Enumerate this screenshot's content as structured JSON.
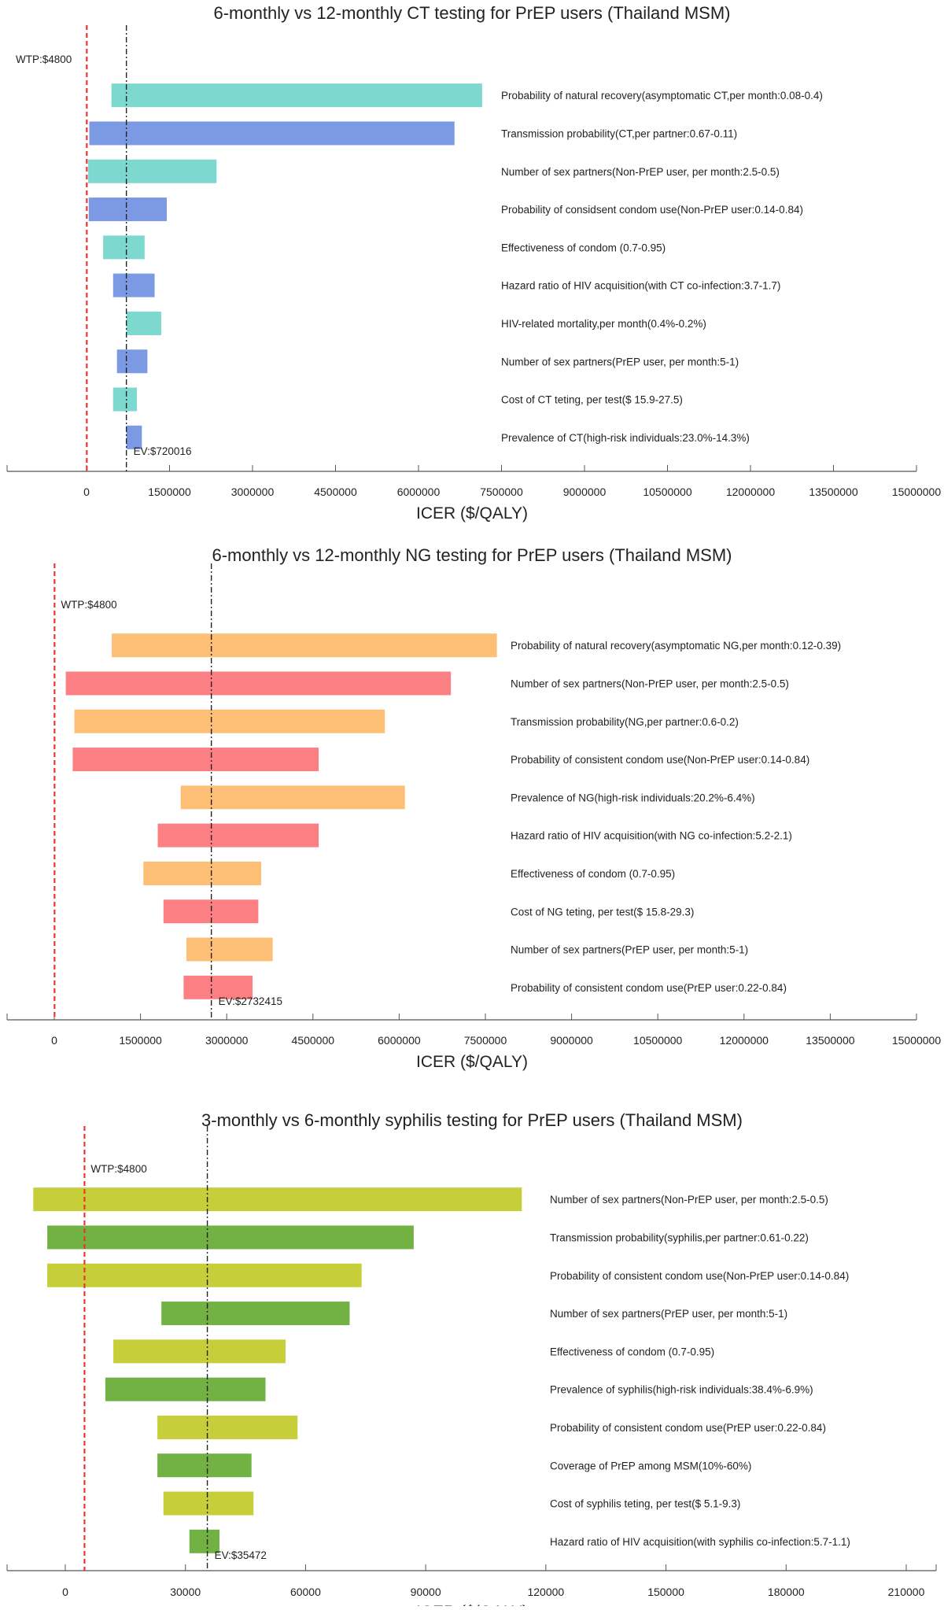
{
  "chart_data": [
    {
      "type": "tornado",
      "title": "6-monthly vs 12-monthly CT testing for PrEP users (Thailand MSM)",
      "xlabel": "ICER ($/QALY)",
      "xlim": [
        -1500000,
        15000000
      ],
      "xticks": [
        0,
        1500000,
        3000000,
        4500000,
        6000000,
        7500000,
        9000000,
        10500000,
        12000000,
        13500000,
        15000000
      ],
      "xtick_labels": [
        "0",
        "1500000",
        "3000000",
        "4500000",
        "6000000",
        "7500000",
        "9000000",
        "10500000",
        "12000000",
        "13500000",
        "15000000"
      ],
      "wtp": {
        "value": 4800,
        "label": "WTP:$4800"
      },
      "ev": {
        "value": 720016,
        "label": "EV:$720016"
      },
      "colors": [
        "#7dd8cf",
        "#7b9ae3"
      ],
      "bars": [
        {
          "label": "Probability of natural recovery(asymptomatic CT,per month:0.08-0.4)",
          "low": 450000,
          "high": 7150000
        },
        {
          "label": "Transmission probability(CT,per partner:0.67-0.11)",
          "low": 50000,
          "high": 6650000
        },
        {
          "label": "Number of sex partners(Non-PrEP user, per month:2.5-0.5)",
          "low": 30000,
          "high": 2350000
        },
        {
          "label": "Probability of considsent condom use(Non-PrEP user:0.14-0.84)",
          "low": 40000,
          "high": 1450000
        },
        {
          "label": "Effectiveness of condom (0.7-0.95)",
          "low": 300000,
          "high": 1050000
        },
        {
          "label": "Hazard ratio of HIV acquisition(with CT co-infection:3.7-1.7)",
          "low": 480000,
          "high": 1230000
        },
        {
          "label": "HIV-related mortality,per month(0.4%-0.2%)",
          "low": 720016,
          "high": 1350000
        },
        {
          "label": "Number of sex partners(PrEP user, per month:5-1)",
          "low": 550000,
          "high": 1100000
        },
        {
          "label": "Cost of CT teting, per test($ 15.9-27.5)",
          "low": 480000,
          "high": 910000
        },
        {
          "label": "Prevalence of CT(high-risk individuals:23.0%-14.3%)",
          "low": 720016,
          "high": 1000000
        }
      ]
    },
    {
      "type": "tornado",
      "title": "6-monthly vs 12-monthly NG testing for PrEP users (Thailand MSM)",
      "xlabel": "ICER ($/QALY)",
      "xlim": [
        -1500000,
        15000000
      ],
      "xticks": [
        0,
        1500000,
        3000000,
        4500000,
        6000000,
        7500000,
        9000000,
        10500000,
        12000000,
        13500000,
        15000000
      ],
      "xtick_labels": [
        "0",
        "1500000",
        "3000000",
        "4500000",
        "6000000",
        "7500000",
        "9000000",
        "10500000",
        "12000000",
        "13500000",
        "15000000"
      ],
      "wtp": {
        "value": 4800,
        "label": "WTP:$4800"
      },
      "ev": {
        "value": 2732415,
        "label": "EV:$2732415"
      },
      "colors": [
        "#fcbf75",
        "#fc8083"
      ],
      "bars": [
        {
          "label": "Probability of natural recovery(asymptomatic NG,per month:0.12-0.39)",
          "low": 1000000,
          "high": 7700000
        },
        {
          "label": "Number of sex partners(Non-PrEP user, per month:2.5-0.5)",
          "low": 200000,
          "high": 6900000
        },
        {
          "label": "Transmission probability(NG,per partner:0.6-0.2)",
          "low": 350000,
          "high": 5750000
        },
        {
          "label": "Probability of consistent condom use(Non-PrEP user:0.14-0.84)",
          "low": 320000,
          "high": 4600000
        },
        {
          "label": "Prevalence of NG(high-risk individuals:20.2%-6.4%)",
          "low": 2200000,
          "high": 6100000
        },
        {
          "label": "Hazard ratio of HIV acquisition(with NG co-infection:5.2-2.1)",
          "low": 1800000,
          "high": 4600000
        },
        {
          "label": "Effectiveness of condom (0.7-0.95)",
          "low": 1550000,
          "high": 3600000
        },
        {
          "label": "Cost of NG teting, per test($ 15.8-29.3)",
          "low": 1900000,
          "high": 3550000
        },
        {
          "label": "Number of sex partners(PrEP user, per month:5-1)",
          "low": 2300000,
          "high": 3800000
        },
        {
          "label": "Probability of consistent condom use(PrEP user:0.22-0.84)",
          "low": 2250000,
          "high": 3450000
        }
      ]
    },
    {
      "type": "tornado",
      "title": "3-monthly vs 6-monthly syphilis testing for PrEP users (Thailand MSM)",
      "xlabel": "ICER ($/QALY)",
      "xlim": [
        -14000,
        210000
      ],
      "xticks": [
        0,
        30000,
        60000,
        90000,
        120000,
        150000,
        180000,
        210000
      ],
      "xtick_labels": [
        "0",
        "30000",
        "60000",
        "90000",
        "120000",
        "150000",
        "180000",
        "210000"
      ],
      "wtp": {
        "value": 4800,
        "label": "WTP:$4800"
      },
      "ev": {
        "value": 35472,
        "label": "EV:$35472"
      },
      "colors": [
        "#c6cf3a",
        "#72b244"
      ],
      "bars": [
        {
          "label": "Number of sex partners(Non-PrEP user, per month:2.5-0.5)",
          "low": -8000,
          "high": 114000
        },
        {
          "label": "Transmission probability(syphilis,per partner:0.61-0.22)",
          "low": -4500,
          "high": 87000
        },
        {
          "label": "Probability of consistent condom use(Non-PrEP user:0.14-0.84)",
          "low": -4500,
          "high": 74000
        },
        {
          "label": "Number of sex partners(PrEP user, per month:5-1)",
          "low": 24000,
          "high": 71000
        },
        {
          "label": "Effectiveness of condom (0.7-0.95)",
          "low": 12000,
          "high": 55000
        },
        {
          "label": "Prevalence of syphilis(high-risk individuals:38.4%-6.9%)",
          "low": 10000,
          "high": 50000
        },
        {
          "label": "Probability of consistent condom use(PrEP user:0.22-0.84)",
          "low": 23000,
          "high": 58000
        },
        {
          "label": "Coverage of PrEP among MSM(10%-60%)",
          "low": 23000,
          "high": 46500
        },
        {
          "label": "Cost of syphilis teting, per test($ 5.1-9.3)",
          "low": 24500,
          "high": 47000
        },
        {
          "label": "Hazard ratio of HIV acquisition(with syphilis co-infection:5.7-1.1)",
          "low": 31000,
          "high": 38500
        }
      ]
    }
  ]
}
